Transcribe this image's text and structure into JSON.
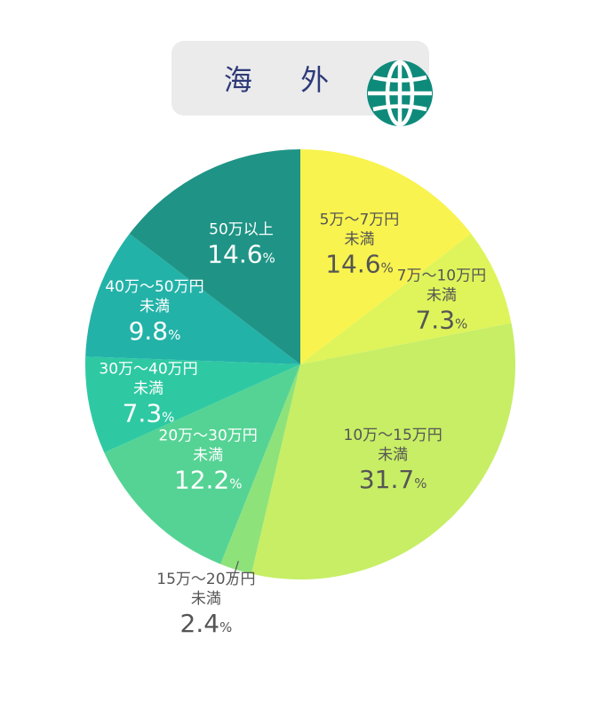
{
  "header": {
    "title": "海 外"
  },
  "icons": {
    "globe": "globe-icon"
  },
  "colors": {
    "title_text": "#2e3a78",
    "globe": "#0e8a7a",
    "label_dark": "#555555",
    "label_light": "#ffffff"
  },
  "chart_data": {
    "type": "pie",
    "title": "",
    "start": "12 o'clock",
    "direction": "clockwise",
    "slices": [
      {
        "label_lines": [
          "5万～7万円",
          "未満"
        ],
        "value": 14.6,
        "value_text": "14.6",
        "unit": "%",
        "color": "#f8f34e",
        "label_color": "#555555"
      },
      {
        "label_lines": [
          "7万～10万円",
          "未満"
        ],
        "value": 7.3,
        "value_text": "7.3",
        "unit": "%",
        "color": "#def45a",
        "label_color": "#555555"
      },
      {
        "label_lines": [
          "10万～15万円",
          "未満"
        ],
        "value": 31.7,
        "value_text": "31.7",
        "unit": "%",
        "color": "#c7ee65",
        "label_color": "#555555"
      },
      {
        "label_lines": [
          "15万～20万円",
          "未満"
        ],
        "value": 2.4,
        "value_text": "2.4",
        "unit": "%",
        "color": "#8ee27a",
        "label_color": "#555555",
        "outside": true
      },
      {
        "label_lines": [
          "20万～30万円",
          "未満"
        ],
        "value": 12.2,
        "value_text": "12.2",
        "unit": "%",
        "color": "#55d394",
        "label_color": "#ffffff"
      },
      {
        "label_lines": [
          "30万～40万円",
          "未満"
        ],
        "value": 7.3,
        "value_text": "7.3",
        "unit": "%",
        "color": "#2ec9a2",
        "label_color": "#ffffff"
      },
      {
        "label_lines": [
          "40万～50万円",
          "未満"
        ],
        "value": 9.8,
        "value_text": "9.8",
        "unit": "%",
        "color": "#23b2a8",
        "label_color": "#ffffff"
      },
      {
        "label_lines": [
          "50万以上"
        ],
        "value": 14.6,
        "value_text": "14.6",
        "unit": "%",
        "color": "#1f9486",
        "label_color": "#ffffff"
      }
    ]
  }
}
